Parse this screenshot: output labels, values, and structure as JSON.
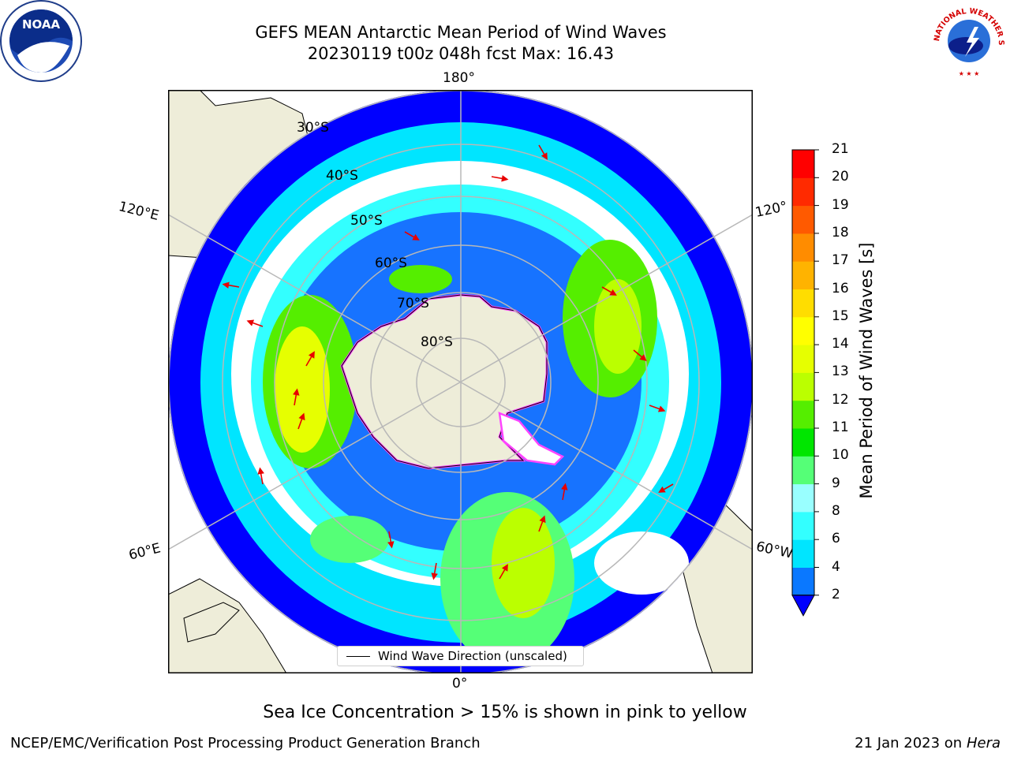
{
  "header": {
    "title": "GEFS MEAN Antarctic Mean Period of Wind Waves",
    "subtitle": "20230119 t00z 048h fcst   Max: 16.43"
  },
  "logos": {
    "noaa_text": "NOAA",
    "nws_text": "NATIONAL WEATHER SERVICE"
  },
  "map": {
    "projection": "south-polar-stereographic",
    "longitude_labels": {
      "top": "180°",
      "bottom": "0°",
      "left_upper": "120°E",
      "left_lower": "60°E",
      "right_upper": "120°",
      "right_lower": "60°W"
    },
    "latitude_labels": [
      "30°S",
      "40°S",
      "50°S",
      "60°S",
      "70°S",
      "80°S"
    ],
    "legend_label": "Wind Wave Direction (unscaled)",
    "colors": {
      "land": "#eeedd9",
      "ocean_blank": "#ffffff",
      "gridlines": "#b8b8b8",
      "arrows": "#e80000",
      "sea_ice": "#ff44ff"
    }
  },
  "colorbar": {
    "title": "Mean Period of Wind Waves [s]",
    "ticks": [
      "2",
      "4",
      "6",
      "8",
      "9",
      "10",
      "11",
      "12",
      "13",
      "14",
      "15",
      "16",
      "17",
      "18",
      "19",
      "20",
      "21"
    ],
    "colors": [
      "#0000ff",
      "#0a78ff",
      "#00e5ff",
      "#33ffff",
      "#99ffff",
      "#55ff77",
      "#00e600",
      "#55ee00",
      "#bbff00",
      "#e6ff00",
      "#ffff00",
      "#ffdd00",
      "#ffb300",
      "#ff8c00",
      "#ff5a00",
      "#ff2a00",
      "#ff0000"
    ],
    "extend": "min"
  },
  "caption": "Sea Ice Concentration > 15% is shown in pink to yellow",
  "footer": {
    "left": "NCEP/EMC/Verification Post Processing Product Generation Branch",
    "right_date": "21 Jan 2023 on",
    "right_machine": "Hera"
  }
}
